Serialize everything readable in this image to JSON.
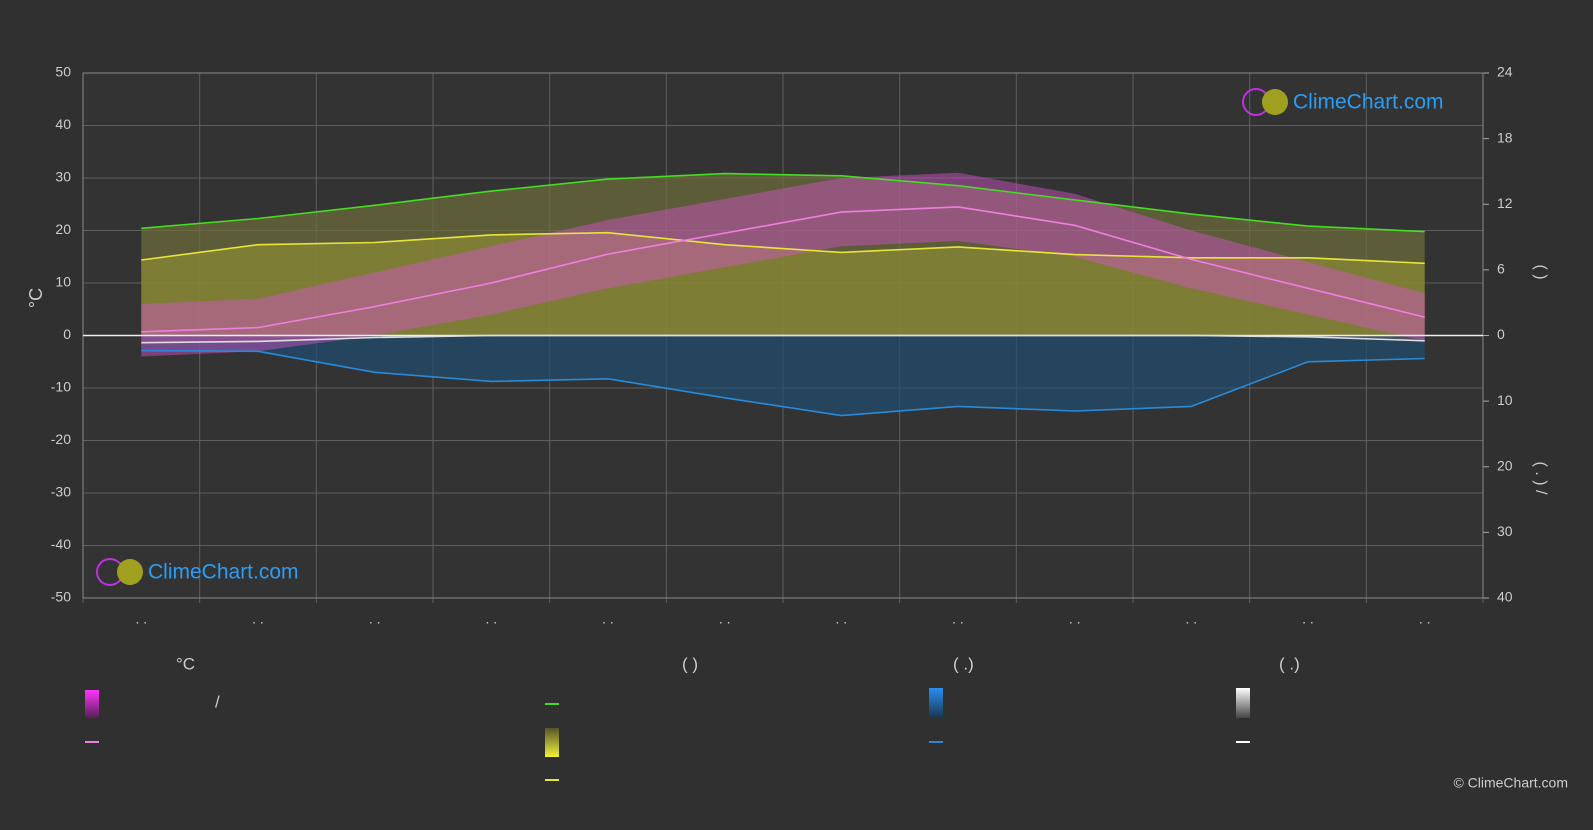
{
  "chart_data": {
    "type": "line",
    "y_label": "°C",
    "y2_label": "(        )",
    "y3_label": "(  .  )    /",
    "categories": [
      ". .",
      ". .",
      ". .",
      ". .",
      ". .",
      ". .",
      ". .",
      ". .",
      ". .",
      ". .",
      ". .",
      ". ."
    ],
    "ylim": [
      -50,
      50
    ],
    "yticks": [
      -50,
      -40,
      -30,
      -20,
      -10,
      0,
      10,
      20,
      30,
      40,
      50
    ],
    "y2lim": [
      0,
      24
    ],
    "y2ticks": [
      0,
      6,
      12,
      18,
      24
    ],
    "y3lim": [
      0,
      40
    ],
    "y3ticks": [
      10,
      20,
      30,
      40
    ],
    "grid": true,
    "range": {
      "color": "#d852cc",
      "max": [
        6,
        7,
        12,
        17,
        22,
        26,
        30,
        31,
        27,
        20,
        14,
        8
      ],
      "min": [
        -4,
        -3,
        0,
        4,
        9,
        13,
        17,
        18,
        15,
        9,
        4,
        -1
      ]
    },
    "series": [
      {
        "color": "#44dd22",
        "fill": "#6e6e3c",
        "axis": "y2",
        "values": [
          9.8,
          10.7,
          11.9,
          13.2,
          14.3,
          14.8,
          14.6,
          13.7,
          12.4,
          11.1,
          10.0,
          9.5
        ]
      },
      {
        "color": "#e6e63a",
        "fill": "#8c8c34",
        "axis": "y2",
        "values": [
          6.9,
          8.3,
          8.5,
          9.2,
          9.4,
          8.3,
          7.6,
          8.1,
          7.4,
          7.1,
          7.1,
          6.6
        ]
      },
      {
        "color": "#f07ee0",
        "axis": "y",
        "values": [
          0.7,
          1.5,
          5.5,
          10,
          15.5,
          19.5,
          23.5,
          24.5,
          21,
          14.5,
          9,
          3.5
        ]
      },
      {
        "color": "#2a8ad8",
        "fill": "#1f4d70",
        "axis": "y3",
        "values": [
          2.3,
          2.4,
          5.6,
          7.0,
          6.6,
          9.5,
          12.2,
          10.8,
          11.5,
          10.8,
          4.0,
          3.5
        ]
      },
      {
        "color": "#dddddd",
        "fill": "#5a5a5a",
        "axis": "y3",
        "values": [
          1.1,
          0.9,
          0.3,
          0,
          0,
          0,
          0,
          0,
          0,
          0,
          0.2,
          0.8
        ]
      }
    ],
    "logo": "ClimeChart.com",
    "copyright": "© ClimeChart.com",
    "legend": {
      "headers": [
        "°C",
        "(          )",
        "(   .)",
        "(   .)"
      ],
      "slash": "/"
    }
  }
}
